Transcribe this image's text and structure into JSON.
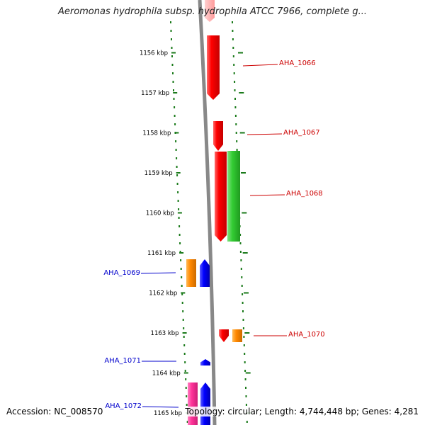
{
  "title": "Aeromonas hydrophila subsp. hydrophila ATCC 7966, complete g...",
  "footer": {
    "accession": "Accession: NC_008570",
    "summary": "Topology: circular; Length: 4,744,448 bp; Genes: 4,281"
  },
  "colors": {
    "backbone": "#888888",
    "ticks": "#1a7a1a",
    "forward_label": "#cc0000",
    "reverse_label": "#0000cc"
  },
  "ruler_ticks": [
    {
      "label": "1156 kbp",
      "kbp": 1156
    },
    {
      "label": "1157 kbp",
      "kbp": 1157
    },
    {
      "label": "1158 kbp",
      "kbp": 1158
    },
    {
      "label": "1159 kbp",
      "kbp": 1159
    },
    {
      "label": "1160 kbp",
      "kbp": 1160
    },
    {
      "label": "1161 kbp",
      "kbp": 1161
    },
    {
      "label": "1162 kbp",
      "kbp": 1162
    },
    {
      "label": "1163 kbp",
      "kbp": 1163
    },
    {
      "label": "1164 kbp",
      "kbp": 1164
    },
    {
      "label": "1165 kbp",
      "kbp": 1165
    }
  ],
  "gene_labels": [
    {
      "name": "AHA_1066",
      "strand": "forward"
    },
    {
      "name": "AHA_1067",
      "strand": "forward"
    },
    {
      "name": "AHA_1068",
      "strand": "forward"
    },
    {
      "name": "AHA_1069",
      "strand": "reverse"
    },
    {
      "name": "AHA_1070",
      "strand": "forward"
    },
    {
      "name": "AHA_1071",
      "strand": "reverse"
    },
    {
      "name": "AHA_1072",
      "strand": "reverse"
    }
  ],
  "features": [
    {
      "kind": "CDS",
      "color": "#ff0000",
      "strand": "forward"
    },
    {
      "kind": "CDS",
      "color": "#ff0000",
      "strand": "forward"
    },
    {
      "kind": "CDS",
      "color": "#ff0000",
      "strand": "forward"
    },
    {
      "kind": "CDS",
      "color": "#ff0000",
      "strand": "forward"
    },
    {
      "kind": "gene",
      "color": "#33cc33",
      "strand": "forward"
    },
    {
      "kind": "gene",
      "color": "#ff8800",
      "strand": "reverse"
    },
    {
      "kind": "CDS",
      "color": "#0000ff",
      "strand": "reverse"
    },
    {
      "kind": "CDS",
      "color": "#ff0000",
      "strand": "forward"
    },
    {
      "kind": "gene",
      "color": "#ff8800",
      "strand": "forward"
    },
    {
      "kind": "CDS",
      "color": "#0000ff",
      "strand": "reverse"
    },
    {
      "kind": "gene",
      "color": "#ff3399",
      "strand": "reverse"
    },
    {
      "kind": "CDS",
      "color": "#0000ff",
      "strand": "reverse"
    }
  ]
}
